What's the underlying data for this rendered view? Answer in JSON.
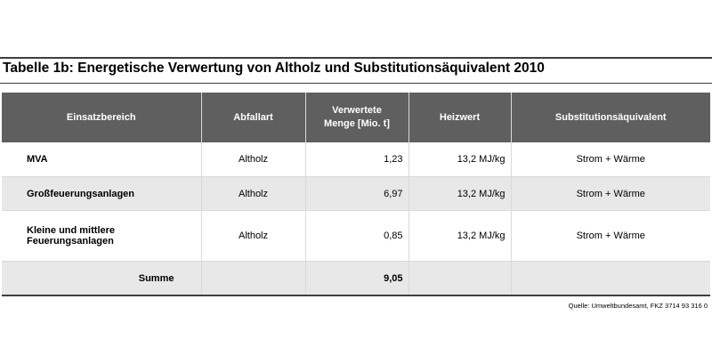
{
  "title": "Tabelle 1b: Energetische Verwertung von Altholz und Substitutionsäquivalent 2010",
  "headers": {
    "einsatzbereich": "Einsatzbereich",
    "abfallart": "Abfallart",
    "menge_line1": "Verwertete",
    "menge_line2": "Menge [Mio. t]",
    "heizwert": "Heizwert",
    "substitution": "Substitutionsäquivalent"
  },
  "rows": [
    {
      "einsatzbereich": "MVA",
      "abfallart": "Altholz",
      "menge": "1,23",
      "heizwert": "13,2 MJ/kg",
      "substitution": "Strom + Wärme"
    },
    {
      "einsatzbereich": "Großfeuerungsanlagen",
      "abfallart": "Altholz",
      "menge": "6,97",
      "heizwert": "13,2 MJ/kg",
      "substitution": "Strom + Wärme"
    },
    {
      "einsatzbereich": "Kleine und mittlere Feuerungsanlagen",
      "abfallart": "Altholz",
      "menge": "0,85",
      "heizwert": "13,2 MJ/kg",
      "substitution": "Strom + Wärme"
    }
  ],
  "summary": {
    "label": "Summe",
    "menge": "9,05"
  },
  "source": "Quelle: Umweltbundesamt, FKZ  3714 93 316 0",
  "colors": {
    "header_bg": "#5f5f5f",
    "stripe_bg": "#e8e8e8",
    "rule": "#3f3f3f"
  }
}
